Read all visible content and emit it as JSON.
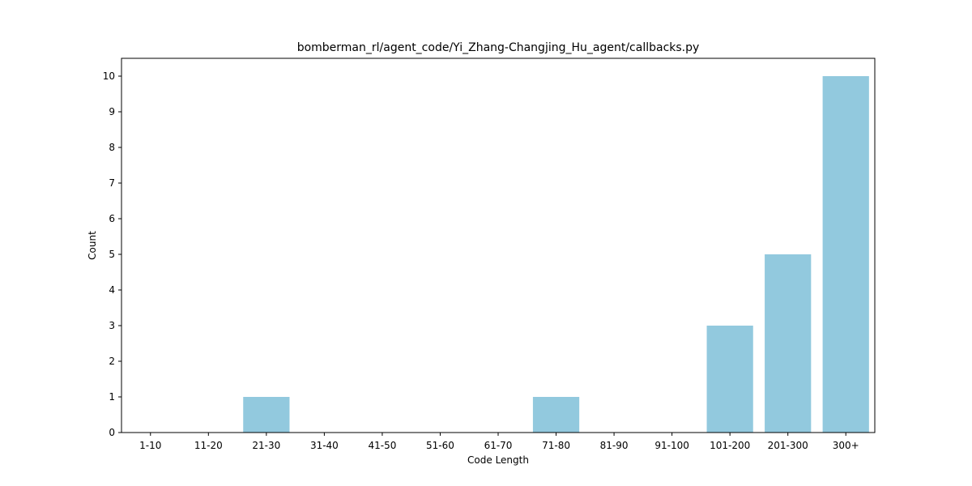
{
  "chart_data": {
    "type": "bar",
    "title": "bomberman_rl/agent_code/Yi_Zhang-Changjing_Hu_agent/callbacks.py",
    "xlabel": "Code Length",
    "ylabel": "Count",
    "categories": [
      "1-10",
      "11-20",
      "21-30",
      "31-40",
      "41-50",
      "51-60",
      "61-70",
      "71-80",
      "81-90",
      "91-100",
      "101-200",
      "201-300",
      "300+"
    ],
    "values": [
      0,
      0,
      1,
      0,
      0,
      0,
      0,
      1,
      0,
      0,
      3,
      5,
      10
    ],
    "ylim": [
      0,
      10.5
    ],
    "yticks": [
      0,
      1,
      2,
      3,
      4,
      5,
      6,
      7,
      8,
      9,
      10
    ],
    "grid": false,
    "legend": "none",
    "bar_color": "#92c9de"
  }
}
